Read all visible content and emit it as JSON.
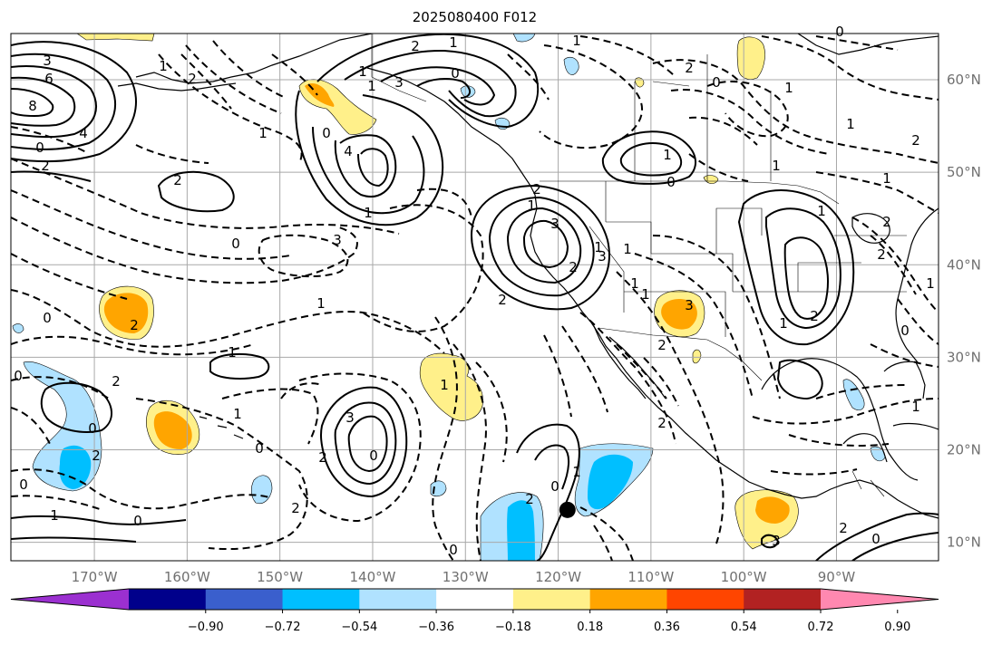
{
  "map": {
    "title": "2025080400 F012",
    "lat_labels": [
      "60°N",
      "50°N",
      "40°N",
      "30°N",
      "20°N",
      "10°N"
    ],
    "lon_labels": [
      "170°W",
      "160°W",
      "150°W",
      "140°W",
      "130°W",
      "120°W",
      "110°W",
      "100°W",
      "90°W"
    ],
    "extent": {
      "lon_min": -179,
      "lon_max": -79,
      "lat_min": 8,
      "lat_max": 65
    },
    "gridline_lats": [
      60,
      50,
      40,
      30,
      20,
      10
    ],
    "gridline_lons": [
      -170,
      -160,
      -150,
      -140,
      -130,
      -120,
      -110,
      -100,
      -90
    ],
    "marker": {
      "lon": -119,
      "lat": 13.5
    }
  },
  "colorbar": {
    "ticks": [
      "−0.90",
      "−0.72",
      "−0.54",
      "−0.36",
      "−0.18",
      "0.18",
      "0.36",
      "0.54",
      "0.72",
      "0.90"
    ],
    "colors": [
      "#9b30d0",
      "#00008b",
      "#3a5fcd",
      "#00bfff",
      "#b0e2ff",
      "#ffffff",
      "#fff08a",
      "#ffa500",
      "#ff4500",
      "#b22222",
      "#ff88b0"
    ]
  },
  "contour_labels": [
    "3",
    "6",
    "8",
    "4",
    "2",
    "0",
    "1",
    "2",
    "1",
    "2",
    "1",
    "4",
    "1",
    "2",
    "0",
    "1",
    "3",
    "0",
    "1",
    "2",
    "3",
    "2",
    "2",
    "3",
    "1",
    "1",
    "0",
    "1",
    "2",
    "1",
    "0",
    "1",
    "2",
    "1",
    "0",
    "2",
    "1",
    "0",
    "3",
    "1",
    "0",
    "2",
    "1",
    "0",
    "3",
    "2",
    "1",
    "1",
    "0",
    "2",
    "2",
    "1",
    "0",
    "0",
    "1",
    "2",
    "3",
    "2",
    "0",
    "1",
    "1",
    "0",
    "2",
    "1",
    "2",
    "1",
    "1",
    "3",
    "2",
    "1",
    "0",
    "2",
    "1",
    "0",
    "0",
    "0",
    "1",
    "2"
  ]
}
